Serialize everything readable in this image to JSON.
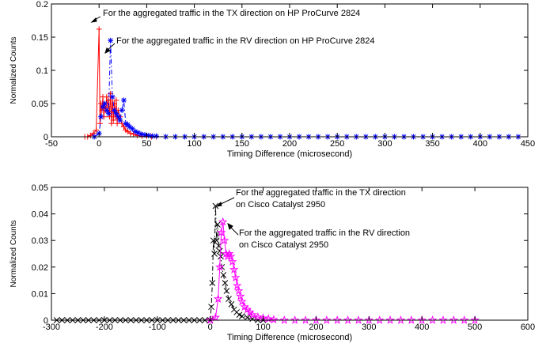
{
  "chart_data": [
    {
      "type": "line",
      "xlabel": "Timing Difference (microsecond)",
      "ylabel": "Normalized Counts",
      "xlim": [
        -50,
        450
      ],
      "ylim": [
        0,
        0.2
      ],
      "xticks": [
        -50,
        0,
        50,
        100,
        150,
        200,
        250,
        300,
        350,
        400,
        450
      ],
      "yticks": [
        0,
        0.05,
        0.1,
        0.15,
        0.2
      ],
      "annotations": [
        [
          "For the aggregated traffic in the TX direction on HP ProCurve 2824"
        ],
        [
          "For the aggregated traffic in the RV direction on HP ProCurve 2824"
        ]
      ],
      "series": [
        {
          "color": "#ff0000",
          "marker": "plus",
          "dash": "solid",
          "x": [
            -15,
            -12,
            -9,
            -6,
            -3,
            0,
            1,
            2,
            3,
            4,
            5,
            6,
            7,
            8,
            9,
            10,
            11,
            12,
            13,
            14,
            15,
            16,
            17,
            18,
            19,
            20,
            22,
            24,
            26,
            28,
            30,
            33,
            36,
            40,
            45,
            50,
            55,
            60
          ],
          "values": [
            0,
            0,
            0.002,
            0.005,
            0.01,
            0.162,
            0.02,
            0.05,
            0.04,
            0.06,
            0.03,
            0.05,
            0.04,
            0.06,
            0.045,
            0.055,
            0.03,
            0.065,
            0.02,
            0.06,
            0.025,
            0.05,
            0.03,
            0.055,
            0.02,
            0.04,
            0.03,
            0.02,
            0.015,
            0.01,
            0.008,
            0.005,
            0.004,
            0.002,
            0.001,
            0.001,
            0,
            0
          ]
        },
        {
          "color": "#0000ff",
          "marker": "star",
          "dash": "dashdot",
          "x": [
            -5,
            0,
            2,
            4,
            6,
            8,
            10,
            12,
            14,
            16,
            18,
            20,
            22,
            24,
            26,
            28,
            30,
            32,
            35,
            38,
            41,
            44,
            48,
            52,
            56,
            60,
            70,
            80,
            90,
            100,
            110,
            120,
            130,
            140,
            150,
            160,
            170,
            180,
            190,
            200,
            210,
            220,
            230,
            240,
            250,
            260,
            270,
            280,
            290,
            300,
            310,
            320,
            330,
            340,
            350,
            360,
            370,
            380,
            390,
            400,
            410,
            420,
            430,
            440
          ],
          "values": [
            0,
            0.005,
            0.03,
            0.045,
            0.05,
            0.04,
            0.035,
            0.145,
            0.06,
            0.04,
            0.035,
            0.03,
            0.025,
            0.04,
            0.055,
            0.02,
            0.018,
            0.015,
            0.012,
            0.008,
            0.006,
            0.004,
            0.003,
            0.002,
            0.001,
            0.001,
            0,
            0,
            0,
            0,
            0,
            0,
            0,
            0,
            0,
            0,
            0,
            0,
            0,
            0,
            0,
            0,
            0,
            0,
            0,
            0,
            0,
            0,
            0,
            0,
            0,
            0,
            0,
            0,
            0,
            0,
            0,
            0,
            0,
            0,
            0,
            0,
            0,
            0
          ]
        }
      ]
    },
    {
      "type": "line",
      "xlabel": "Timing Difference (microsecond)",
      "ylabel": "Normalized Counts",
      "xlim": [
        -300,
        600
      ],
      "ylim": [
        0,
        0.05
      ],
      "xticks": [
        -300,
        -200,
        -100,
        0,
        100,
        200,
        300,
        400,
        500,
        600
      ],
      "yticks": [
        0,
        0.01,
        0.02,
        0.03,
        0.04,
        0.05
      ],
      "annotations": [
        [
          "For the aggregated traffic in the TX direction",
          "on Cisco Catalyst 2950"
        ],
        [
          "For the aggregated traffic in the RV direction",
          "on Cisco Catalyst 2950"
        ]
      ],
      "series": [
        {
          "color": "#000000",
          "marker": "cross",
          "dash": "dashdot",
          "x": [
            -290,
            -280,
            -270,
            -260,
            -250,
            -240,
            -230,
            -220,
            -210,
            -200,
            -190,
            -180,
            -170,
            -160,
            -150,
            -140,
            -130,
            -120,
            -110,
            -100,
            -90,
            -80,
            -70,
            -60,
            -50,
            -40,
            -30,
            -20,
            -10,
            0,
            2,
            4,
            6,
            8,
            10,
            12,
            14,
            16,
            18,
            20,
            22,
            25,
            28,
            31,
            35,
            40,
            45,
            50,
            55,
            60,
            70,
            80,
            90,
            100
          ],
          "values": [
            0,
            0,
            0,
            0,
            0,
            0,
            0,
            0,
            0,
            0,
            0,
            0,
            0,
            0,
            0,
            0,
            0,
            0,
            0,
            0,
            0,
            0,
            0,
            0,
            0,
            0,
            0,
            0,
            0,
            0,
            0.005,
            0.014,
            0.03,
            0.025,
            0.043,
            0.03,
            0.036,
            0.028,
            0.026,
            0.024,
            0.02,
            0.017,
            0.014,
            0.011,
            0.008,
            0.006,
            0.004,
            0.003,
            0.002,
            0.0015,
            0.001,
            0.0005,
            0,
            0
          ]
        },
        {
          "color": "#ff00ff",
          "marker": "pentagram",
          "dash": "solid",
          "x": [
            0,
            10,
            15,
            18,
            21,
            24,
            27,
            30,
            33,
            36,
            39,
            42,
            45,
            48,
            51,
            54,
            57,
            60,
            65,
            70,
            75,
            80,
            90,
            100,
            110,
            120,
            140,
            160,
            180,
            200,
            220,
            240,
            260,
            280,
            300,
            320,
            340,
            360,
            380,
            400,
            420,
            440,
            460,
            480,
            500
          ],
          "values": [
            0,
            0.001,
            0.008,
            0.02,
            0.033,
            0.037,
            0.03,
            0.025,
            0.024,
            0.025,
            0.024,
            0.022,
            0.019,
            0.016,
            0.013,
            0.011,
            0.009,
            0.007,
            0.005,
            0.004,
            0.003,
            0.002,
            0.0012,
            0.0008,
            0.0005,
            0.0002,
            0,
            0,
            0,
            0,
            0,
            0,
            0,
            0,
            0,
            0,
            0,
            0,
            0,
            0,
            0,
            0,
            0,
            0,
            0
          ]
        }
      ]
    }
  ]
}
